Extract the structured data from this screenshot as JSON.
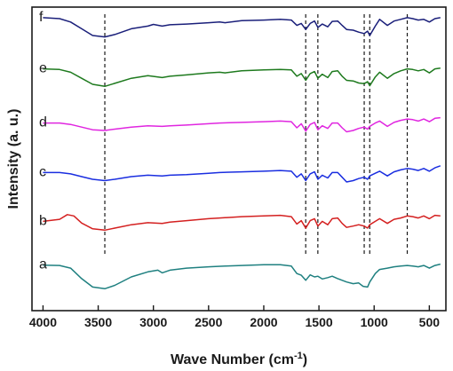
{
  "chart_data": {
    "type": "line",
    "title": "",
    "xlabel": "Wave Number (cm",
    "xlabel_sup": "-1",
    "xlabel_close": ")",
    "ylabel": "Intensity (a. u.)",
    "xlim": [
      4100,
      350
    ],
    "x_reversed": true,
    "x_ticks": [
      4000,
      3500,
      3000,
      2500,
      2000,
      1500,
      1000,
      500
    ],
    "y_ticks_visible": false,
    "grid": false,
    "legend": "inline labels at left of each trace",
    "reference_lines": [
      3440,
      1620,
      1510,
      1090,
      1040,
      700
    ],
    "series": [
      {
        "name": "f",
        "color": "#1a1f7a",
        "offset": 5,
        "points": [
          [
            4000,
            0.95
          ],
          [
            3850,
            0.92
          ],
          [
            3750,
            0.82
          ],
          [
            3650,
            0.62
          ],
          [
            3550,
            0.42
          ],
          [
            3440,
            0.38
          ],
          [
            3350,
            0.45
          ],
          [
            3200,
            0.62
          ],
          [
            3050,
            0.7
          ],
          [
            3000,
            0.75
          ],
          [
            2920,
            0.7
          ],
          [
            2850,
            0.74
          ],
          [
            2700,
            0.76
          ],
          [
            2500,
            0.8
          ],
          [
            2400,
            0.82
          ],
          [
            2350,
            0.8
          ],
          [
            2200,
            0.86
          ],
          [
            2000,
            0.88
          ],
          [
            1850,
            0.9
          ],
          [
            1750,
            0.88
          ],
          [
            1700,
            0.72
          ],
          [
            1660,
            0.78
          ],
          [
            1620,
            0.6
          ],
          [
            1580,
            0.78
          ],
          [
            1540,
            0.85
          ],
          [
            1510,
            0.66
          ],
          [
            1470,
            0.76
          ],
          [
            1420,
            0.68
          ],
          [
            1380,
            0.84
          ],
          [
            1330,
            0.85
          ],
          [
            1290,
            0.72
          ],
          [
            1250,
            0.6
          ],
          [
            1190,
            0.58
          ],
          [
            1140,
            0.52
          ],
          [
            1090,
            0.48
          ],
          [
            1060,
            0.55
          ],
          [
            1040,
            0.42
          ],
          [
            990,
            0.7
          ],
          [
            950,
            0.9
          ],
          [
            880,
            0.72
          ],
          [
            820,
            0.85
          ],
          [
            760,
            0.9
          ],
          [
            700,
            0.95
          ],
          [
            650,
            0.92
          ],
          [
            600,
            0.88
          ],
          [
            550,
            0.9
          ],
          [
            500,
            0.82
          ],
          [
            450,
            0.92
          ],
          [
            400,
            0.95
          ]
        ]
      },
      {
        "name": "e",
        "color": "#1e7a1e",
        "offset": 4,
        "points": [
          [
            4000,
            0.88
          ],
          [
            3850,
            0.86
          ],
          [
            3750,
            0.78
          ],
          [
            3650,
            0.6
          ],
          [
            3550,
            0.42
          ],
          [
            3440,
            0.36
          ],
          [
            3350,
            0.45
          ],
          [
            3200,
            0.6
          ],
          [
            3050,
            0.68
          ],
          [
            2920,
            0.62
          ],
          [
            2850,
            0.66
          ],
          [
            2700,
            0.7
          ],
          [
            2500,
            0.76
          ],
          [
            2400,
            0.78
          ],
          [
            2350,
            0.76
          ],
          [
            2200,
            0.82
          ],
          [
            2000,
            0.85
          ],
          [
            1850,
            0.86
          ],
          [
            1750,
            0.85
          ],
          [
            1700,
            0.66
          ],
          [
            1660,
            0.74
          ],
          [
            1620,
            0.54
          ],
          [
            1580,
            0.74
          ],
          [
            1540,
            0.8
          ],
          [
            1510,
            0.6
          ],
          [
            1470,
            0.72
          ],
          [
            1420,
            0.62
          ],
          [
            1380,
            0.8
          ],
          [
            1330,
            0.82
          ],
          [
            1290,
            0.66
          ],
          [
            1250,
            0.54
          ],
          [
            1190,
            0.52
          ],
          [
            1140,
            0.46
          ],
          [
            1090,
            0.44
          ],
          [
            1060,
            0.5
          ],
          [
            1040,
            0.38
          ],
          [
            990,
            0.64
          ],
          [
            950,
            0.78
          ],
          [
            880,
            0.6
          ],
          [
            820,
            0.74
          ],
          [
            760,
            0.82
          ],
          [
            700,
            0.88
          ],
          [
            650,
            0.86
          ],
          [
            600,
            0.82
          ],
          [
            550,
            0.86
          ],
          [
            500,
            0.76
          ],
          [
            450,
            0.88
          ],
          [
            400,
            0.9
          ]
        ]
      },
      {
        "name": "d",
        "color": "#e026e0",
        "offset": 3,
        "points": [
          [
            4000,
            0.72
          ],
          [
            3850,
            0.72
          ],
          [
            3750,
            0.68
          ],
          [
            3650,
            0.6
          ],
          [
            3550,
            0.52
          ],
          [
            3440,
            0.5
          ],
          [
            3350,
            0.54
          ],
          [
            3200,
            0.6
          ],
          [
            3050,
            0.64
          ],
          [
            2920,
            0.62
          ],
          [
            2850,
            0.64
          ],
          [
            2700,
            0.66
          ],
          [
            2500,
            0.7
          ],
          [
            2400,
            0.72
          ],
          [
            2200,
            0.74
          ],
          [
            2000,
            0.76
          ],
          [
            1850,
            0.78
          ],
          [
            1750,
            0.76
          ],
          [
            1700,
            0.58
          ],
          [
            1660,
            0.7
          ],
          [
            1620,
            0.48
          ],
          [
            1580,
            0.68
          ],
          [
            1540,
            0.74
          ],
          [
            1510,
            0.52
          ],
          [
            1470,
            0.64
          ],
          [
            1420,
            0.56
          ],
          [
            1380,
            0.72
          ],
          [
            1330,
            0.72
          ],
          [
            1290,
            0.58
          ],
          [
            1250,
            0.46
          ],
          [
            1190,
            0.5
          ],
          [
            1140,
            0.56
          ],
          [
            1090,
            0.6
          ],
          [
            1060,
            0.54
          ],
          [
            1040,
            0.62
          ],
          [
            990,
            0.72
          ],
          [
            950,
            0.78
          ],
          [
            880,
            0.62
          ],
          [
            820,
            0.74
          ],
          [
            760,
            0.8
          ],
          [
            700,
            0.84
          ],
          [
            650,
            0.82
          ],
          [
            600,
            0.78
          ],
          [
            550,
            0.84
          ],
          [
            500,
            0.76
          ],
          [
            450,
            0.86
          ],
          [
            400,
            0.88
          ]
        ]
      },
      {
        "name": "c",
        "color": "#1a2ee0",
        "offset": 2,
        "points": [
          [
            4000,
            0.7
          ],
          [
            3850,
            0.7
          ],
          [
            3750,
            0.66
          ],
          [
            3650,
            0.58
          ],
          [
            3550,
            0.5
          ],
          [
            3440,
            0.46
          ],
          [
            3350,
            0.5
          ],
          [
            3200,
            0.58
          ],
          [
            3050,
            0.62
          ],
          [
            2920,
            0.6
          ],
          [
            2850,
            0.62
          ],
          [
            2700,
            0.64
          ],
          [
            2500,
            0.68
          ],
          [
            2400,
            0.7
          ],
          [
            2200,
            0.72
          ],
          [
            2000,
            0.74
          ],
          [
            1850,
            0.76
          ],
          [
            1750,
            0.74
          ],
          [
            1700,
            0.56
          ],
          [
            1660,
            0.66
          ],
          [
            1620,
            0.46
          ],
          [
            1580,
            0.66
          ],
          [
            1540,
            0.72
          ],
          [
            1510,
            0.5
          ],
          [
            1470,
            0.62
          ],
          [
            1420,
            0.54
          ],
          [
            1380,
            0.7
          ],
          [
            1330,
            0.7
          ],
          [
            1290,
            0.56
          ],
          [
            1250,
            0.42
          ],
          [
            1190,
            0.46
          ],
          [
            1140,
            0.52
          ],
          [
            1090,
            0.56
          ],
          [
            1060,
            0.5
          ],
          [
            1040,
            0.6
          ],
          [
            990,
            0.68
          ],
          [
            950,
            0.74
          ],
          [
            880,
            0.6
          ],
          [
            820,
            0.72
          ],
          [
            760,
            0.78
          ],
          [
            700,
            0.82
          ],
          [
            650,
            0.8
          ],
          [
            600,
            0.76
          ],
          [
            550,
            0.82
          ],
          [
            500,
            0.74
          ],
          [
            450,
            0.84
          ],
          [
            400,
            0.9
          ]
        ]
      },
      {
        "name": "b",
        "color": "#d42020",
        "offset": 1,
        "points": [
          [
            4000,
            0.7
          ],
          [
            3850,
            0.76
          ],
          [
            3780,
            0.9
          ],
          [
            3720,
            0.86
          ],
          [
            3650,
            0.65
          ],
          [
            3550,
            0.48
          ],
          [
            3440,
            0.44
          ],
          [
            3350,
            0.5
          ],
          [
            3200,
            0.6
          ],
          [
            3050,
            0.66
          ],
          [
            2920,
            0.64
          ],
          [
            2850,
            0.68
          ],
          [
            2700,
            0.72
          ],
          [
            2500,
            0.78
          ],
          [
            2400,
            0.8
          ],
          [
            2200,
            0.84
          ],
          [
            2000,
            0.86
          ],
          [
            1850,
            0.88
          ],
          [
            1750,
            0.84
          ],
          [
            1700,
            0.62
          ],
          [
            1660,
            0.72
          ],
          [
            1620,
            0.5
          ],
          [
            1580,
            0.72
          ],
          [
            1540,
            0.78
          ],
          [
            1510,
            0.56
          ],
          [
            1470,
            0.7
          ],
          [
            1420,
            0.6
          ],
          [
            1380,
            0.78
          ],
          [
            1330,
            0.8
          ],
          [
            1290,
            0.64
          ],
          [
            1250,
            0.52
          ],
          [
            1190,
            0.56
          ],
          [
            1140,
            0.6
          ],
          [
            1090,
            0.56
          ],
          [
            1060,
            0.5
          ],
          [
            1040,
            0.6
          ],
          [
            990,
            0.7
          ],
          [
            950,
            0.78
          ],
          [
            880,
            0.64
          ],
          [
            820,
            0.76
          ],
          [
            760,
            0.8
          ],
          [
            700,
            0.86
          ],
          [
            650,
            0.84
          ],
          [
            600,
            0.8
          ],
          [
            550,
            0.86
          ],
          [
            500,
            0.78
          ],
          [
            450,
            0.88
          ],
          [
            400,
            0.86
          ]
        ]
      },
      {
        "name": "a",
        "color": "#1f8080",
        "offset": 0,
        "points": [
          [
            4000,
            0.85
          ],
          [
            3850,
            0.84
          ],
          [
            3750,
            0.76
          ],
          [
            3650,
            0.45
          ],
          [
            3550,
            0.2
          ],
          [
            3440,
            0.15
          ],
          [
            3350,
            0.25
          ],
          [
            3200,
            0.5
          ],
          [
            3050,
            0.65
          ],
          [
            2960,
            0.7
          ],
          [
            2920,
            0.62
          ],
          [
            2850,
            0.7
          ],
          [
            2700,
            0.76
          ],
          [
            2500,
            0.8
          ],
          [
            2350,
            0.82
          ],
          [
            2200,
            0.84
          ],
          [
            2000,
            0.86
          ],
          [
            1850,
            0.86
          ],
          [
            1750,
            0.82
          ],
          [
            1700,
            0.6
          ],
          [
            1660,
            0.55
          ],
          [
            1620,
            0.4
          ],
          [
            1580,
            0.56
          ],
          [
            1540,
            0.5
          ],
          [
            1510,
            0.52
          ],
          [
            1470,
            0.44
          ],
          [
            1420,
            0.48
          ],
          [
            1380,
            0.52
          ],
          [
            1330,
            0.45
          ],
          [
            1290,
            0.4
          ],
          [
            1250,
            0.35
          ],
          [
            1190,
            0.3
          ],
          [
            1140,
            0.32
          ],
          [
            1100,
            0.22
          ],
          [
            1060,
            0.2
          ],
          [
            1040,
            0.35
          ],
          [
            990,
            0.6
          ],
          [
            950,
            0.72
          ],
          [
            880,
            0.76
          ],
          [
            820,
            0.8
          ],
          [
            760,
            0.82
          ],
          [
            700,
            0.84
          ],
          [
            650,
            0.82
          ],
          [
            600,
            0.8
          ],
          [
            550,
            0.84
          ],
          [
            500,
            0.76
          ],
          [
            450,
            0.84
          ],
          [
            400,
            0.88
          ]
        ]
      }
    ]
  }
}
